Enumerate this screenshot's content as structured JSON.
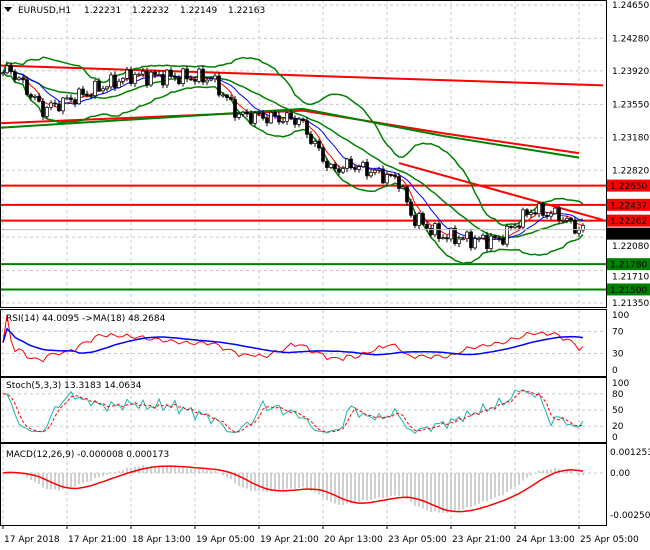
{
  "chart_data": {
    "type": "candlestick",
    "symbol_header": {
      "symbol": "EURUSD,H1",
      "open": "1.22231",
      "high": "1.22232",
      "low": "1.22149",
      "close": "1.22163"
    },
    "price_ticks": [
      "1.24650",
      "1.24280",
      "1.23920",
      "1.23550",
      "1.23180",
      "1.22820",
      "1.22080",
      "1.21710",
      "1.21350"
    ],
    "price_range": [
      1.2135,
      1.2465
    ],
    "current_price": {
      "label": "1.22163",
      "value": 1.22163
    },
    "time_ticks": [
      "17 Apr 2018",
      "17 Apr 21:00",
      "18 Apr 13:00",
      "19 Apr 05:00",
      "19 Apr 21:00",
      "20 Apr 13:00",
      "23 Apr 05:00",
      "23 Apr 21:00",
      "24 Apr 13:00",
      "25 Apr 05:00"
    ],
    "bars_per_tick": 16,
    "close_keypoints": [
      [
        0,
        1.239
      ],
      [
        2,
        1.2393
      ],
      [
        10,
        1.2349
      ],
      [
        24,
        1.2373
      ],
      [
        32,
        1.2387
      ],
      [
        52,
        1.2384
      ],
      [
        59,
        1.2343
      ],
      [
        74,
        1.2338
      ],
      [
        82,
        1.2282
      ],
      [
        87,
        1.2288
      ],
      [
        99,
        1.2271
      ],
      [
        102,
        1.2232
      ],
      [
        109,
        1.221
      ],
      [
        117,
        1.2205
      ],
      [
        124,
        1.2205
      ],
      [
        132,
        1.2238
      ],
      [
        139,
        1.2232
      ],
      [
        144,
        1.2216
      ]
    ],
    "resistance_levels": [
      {
        "label": "1.22650",
        "value": 1.2265
      },
      {
        "label": "1.22437",
        "value": 1.22437
      },
      {
        "label": "1.22262",
        "value": 1.22262
      }
    ],
    "support_levels": [
      {
        "label": "1.21780",
        "value": 1.2178
      },
      {
        "label": "1.21500",
        "value": 1.215
      }
    ],
    "trendlines": [
      {
        "from": [
          -1,
          1.2398
        ],
        "to": [
          150,
          1.2376
        ]
      },
      {
        "from": [
          99,
          1.229
        ],
        "to": [
          150,
          1.2227
        ]
      }
    ],
    "long_ma_red": [
      [
        -1,
        1.2334
      ],
      [
        75,
        1.2348
      ],
      [
        110,
        1.2323
      ],
      [
        144,
        1.2301
      ]
    ],
    "long_ma_green": [
      [
        -1,
        1.2329
      ],
      [
        75,
        1.235
      ],
      [
        110,
        1.232
      ],
      [
        144,
        1.2296
      ]
    ],
    "colors": {
      "resistance": "#ff0000",
      "support": "#008000",
      "bollinger": "#008000",
      "fast_ma": "#ff0000",
      "slow_ma": "#0000ff",
      "stoch_main": "#20b2aa",
      "current": "#000000"
    },
    "rsi": {
      "label": "RSI(14) 44.0095  ->MA(18) 48.2684",
      "ticks": [
        "100",
        "70",
        "30",
        "0"
      ],
      "levels": [
        100,
        70,
        30,
        0
      ]
    },
    "stoch": {
      "label": "Stoch(5,3,3) 13.3183 14.0634",
      "ticks": [
        "100",
        "80",
        "50",
        "20",
        "0"
      ],
      "levels": [
        100,
        80,
        50,
        20,
        0
      ]
    },
    "macd": {
      "label": "MACD(12,26,9) -0.000008 0.000173",
      "ticks": [
        "0.001253",
        "0.00",
        "-0.002509"
      ],
      "levels": [
        0.001253,
        0,
        -0.002509
      ]
    }
  }
}
